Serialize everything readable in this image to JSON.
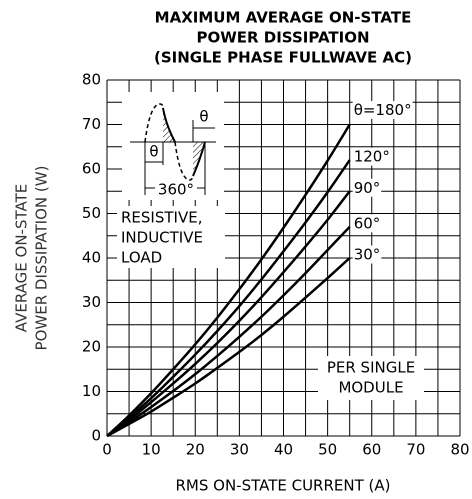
{
  "chart_data": {
    "type": "line",
    "title": [
      "MAXIMUM AVERAGE ON-STATE",
      "POWER DISSIPATION",
      "(SINGLE PHASE FULLWAVE AC)"
    ],
    "x_label": "RMS ON-STATE CURRENT (A)",
    "y_label": [
      "AVERAGE ON-STATE",
      "POWER DISSIPATION (W)"
    ],
    "x": [
      0,
      5,
      10,
      15,
      20,
      25,
      30,
      35,
      40,
      45,
      50,
      55
    ],
    "series": [
      {
        "name": "θ=180°",
        "color": "#000000",
        "values": [
          0,
          4.6,
          9.6,
          15,
          20.6,
          26.6,
          33,
          39.7,
          46.8,
          54.2,
          61.9,
          70
        ]
      },
      {
        "name": "120°",
        "color": "#000000",
        "values": [
          0,
          4.1,
          8.5,
          13.3,
          18.3,
          23.6,
          29.2,
          35.2,
          41.5,
          48,
          54.8,
          62
        ]
      },
      {
        "name": "90°",
        "color": "#000000",
        "values": [
          0,
          3.6,
          7.6,
          11.8,
          16.2,
          20.9,
          25.9,
          31.2,
          36.8,
          42.6,
          48.6,
          55
        ]
      },
      {
        "name": "60°",
        "color": "#000000",
        "values": [
          0,
          3.1,
          6.5,
          10.1,
          13.9,
          18,
          22.3,
          26.8,
          31.6,
          36.6,
          41.8,
          47
        ]
      },
      {
        "name": "30°",
        "color": "#000000",
        "values": [
          0,
          2.7,
          5.5,
          8.6,
          11.8,
          15.3,
          18.9,
          22.7,
          26.8,
          31.1,
          35.5,
          40
        ]
      }
    ],
    "xlim": [
      0,
      80
    ],
    "ylim": [
      0,
      80
    ],
    "xticks": [
      0,
      10,
      20,
      30,
      40,
      50,
      60,
      70,
      80
    ],
    "yticks": [
      0,
      10,
      20,
      30,
      40,
      50,
      60,
      70,
      80
    ],
    "xminorticks": [
      5,
      15,
      25,
      35,
      45,
      55,
      65,
      75
    ],
    "yminorticks": [
      5,
      15,
      25,
      35,
      45,
      55,
      65,
      75
    ],
    "grid": true,
    "annotations": {
      "load": [
        "RESISTIVE,",
        "INDUCTIVE",
        "LOAD"
      ],
      "module": [
        "PER SINGLE",
        "MODULE"
      ],
      "waveform": {
        "theta_left": "θ",
        "theta_right": "θ",
        "period": "360°"
      }
    }
  }
}
